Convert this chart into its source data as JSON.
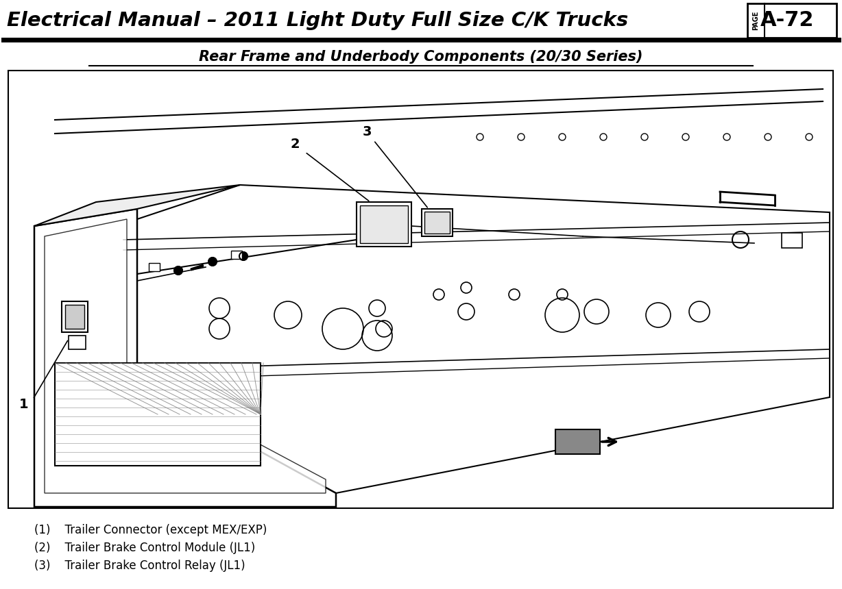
{
  "title_main": "Electrical Manual – 2011 Light Duty Full Size C/K Trucks",
  "title_sub": "Rear Frame and Underbody Components (20/30 Series)",
  "page_label": "PAGE",
  "page_number": "A-72",
  "components": [
    "(1)    Trailer Connector (except MEX/EXP)",
    "(2)    Trailer Brake Control Module (JL1)",
    "(3)    Trailer Brake Control Relay (JL1)"
  ],
  "bg_color": "#ffffff",
  "header_font_size": 21,
  "sub_font_size": 15,
  "component_font_size": 12
}
